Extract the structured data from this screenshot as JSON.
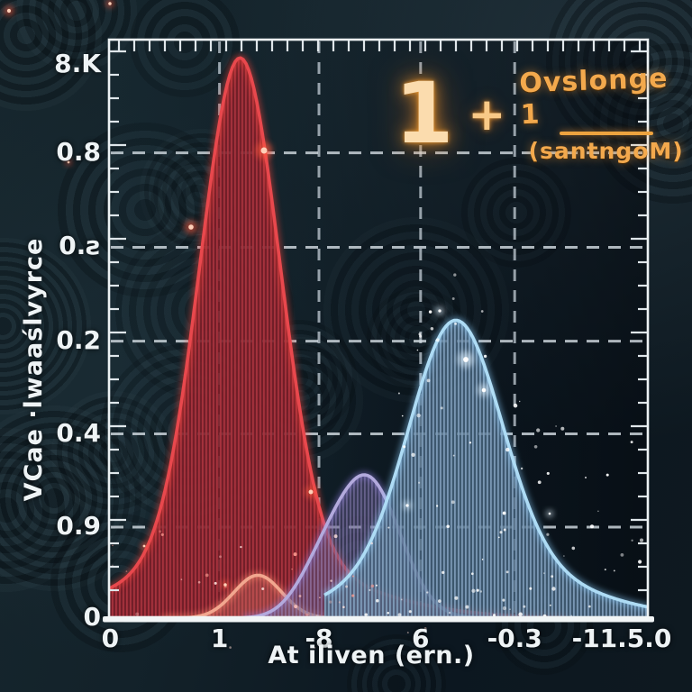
{
  "figure": {
    "y_axis_title": "VCae ·lwaaślvyrce",
    "x_axis_title": "At iliven (ern.)",
    "formula": {
      "lead": "1",
      "operator": "+",
      "numerator": "Ovslonge 1",
      "denominator": "(santngoM)"
    }
  },
  "chart_data": {
    "type": "area",
    "title": "",
    "xlabel": "At iliven (ern.)",
    "ylabel": "VCae ·lwaaślvyrce",
    "annotation": "1 + Ovslonge 1 / (santngoM)",
    "grid": "dashed",
    "legend": null,
    "x_ticks": [
      {
        "label": "0",
        "f": 0.004,
        "grid": false
      },
      {
        "label": "1",
        "f": 0.206,
        "grid": true
      },
      {
        "label": "-8",
        "f": 0.39,
        "grid": true
      },
      {
        "label": "6",
        "f": 0.578,
        "grid": true
      },
      {
        "label": "-0.3",
        "f": 0.752,
        "grid": true
      },
      {
        "label": "-11.5.0",
        "f": 0.95,
        "grid": false
      }
    ],
    "y_ticks": [
      {
        "label": "8.K",
        "f": 0.045,
        "grid": false
      },
      {
        "label": "0.8",
        "f": 0.197,
        "grid": true
      },
      {
        "label": "0.ƨ",
        "f": 0.36,
        "grid": true
      },
      {
        "label": "0.2",
        "f": 0.522,
        "grid": true
      },
      {
        "label": "0.4",
        "f": 0.682,
        "grid": true
      },
      {
        "label": "0.9",
        "f": 0.843,
        "grid": true
      },
      {
        "label": "0",
        "f": 1.0,
        "grid": false
      }
    ],
    "series": [
      {
        "name": "red-distribution",
        "stroke": "#e8484d",
        "glow": "#ff4438",
        "fill": "stripes-red",
        "range": [
          0.0,
          0.85
        ],
        "components": [
          {
            "c": 0.244,
            "h": 0.868,
            "s": 0.073
          },
          {
            "c": 0.244,
            "h": 0.099,
            "s": 0.2
          }
        ]
      },
      {
        "name": "salmon-bump",
        "stroke": "#f2a78f",
        "glow": "#ff8d70",
        "fill": "rgba(242,152,128,0.25)",
        "range": [
          0.1,
          0.46
        ],
        "components": [
          {
            "c": 0.277,
            "h": 0.074,
            "s": 0.044
          }
        ]
      },
      {
        "name": "purple-distribution",
        "stroke": "#b3aadd",
        "glow": "#8f7fe0",
        "fill": "stripes-purple",
        "range": [
          0.25,
          0.73
        ],
        "components": [
          {
            "c": 0.481,
            "h": 0.236,
            "s": 0.06
          },
          {
            "c": 0.392,
            "h": 0.059,
            "s": 0.047
          }
        ]
      },
      {
        "name": "blue-distribution",
        "stroke": "#aedcf5",
        "glow": "#8fd0ff",
        "fill": "stripes-blue",
        "range": [
          0.4,
          1.0
        ],
        "components": [
          {
            "c": 0.642,
            "h": 0.419,
            "s": 0.084
          },
          {
            "c": 0.668,
            "h": 0.096,
            "s": 0.184
          }
        ]
      }
    ]
  },
  "colors": {
    "frame": "#edf2f4",
    "grid": "#cdd7dd",
    "text": "#eef3f5",
    "formula_accent": "#f3a94d",
    "background": "#101d24"
  }
}
